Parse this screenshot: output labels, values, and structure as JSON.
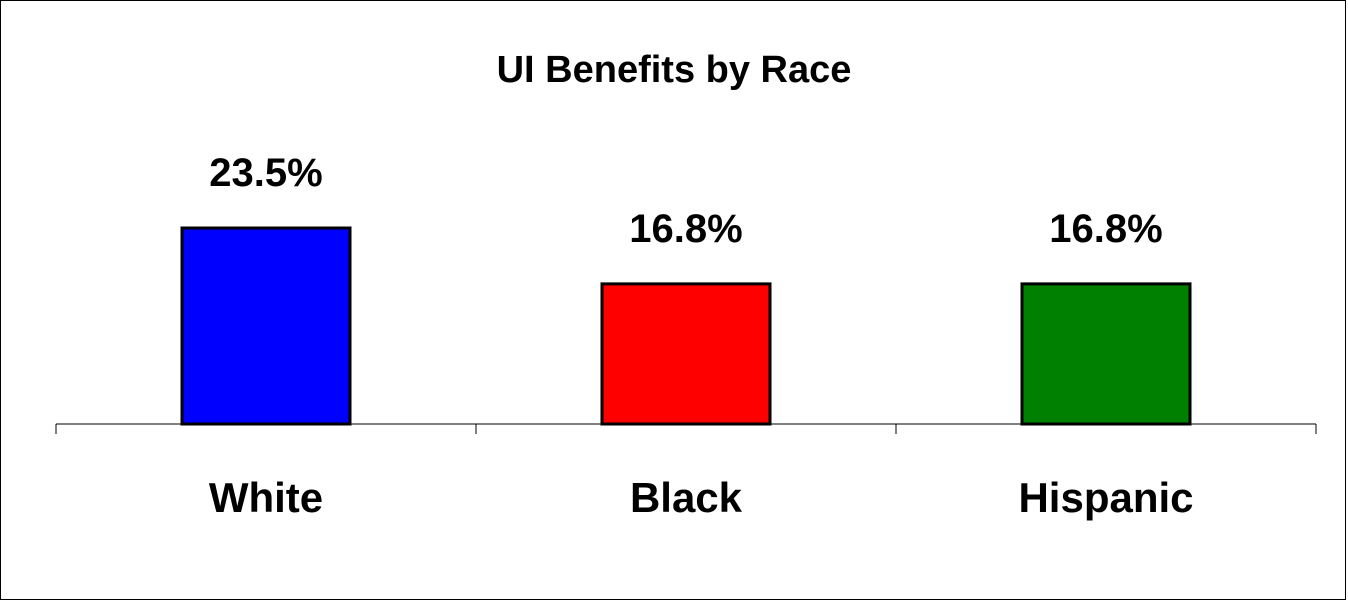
{
  "chart_data": {
    "type": "bar",
    "title": "UI Benefits by Race",
    "categories": [
      "White",
      "Black",
      "Hispanic"
    ],
    "values": [
      23.5,
      16.8,
      16.8
    ],
    "data_labels": [
      "23.5%",
      "16.8%",
      "16.8%"
    ],
    "colors": [
      "#0000ff",
      "#ff0000",
      "#008000"
    ],
    "ylim": [
      0,
      30
    ],
    "grid": false,
    "legend": "none"
  }
}
